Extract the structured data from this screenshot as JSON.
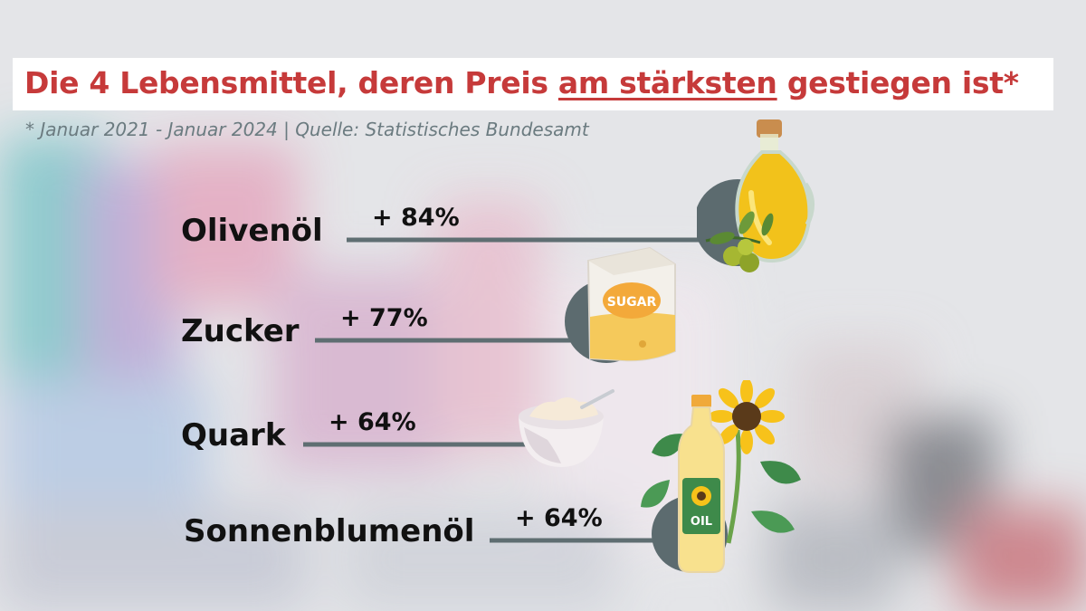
{
  "title": {
    "part1": "Die 4 Lebensmittel, deren Preis ",
    "highlight": "am stärksten",
    "part2": " gestiegen ist*"
  },
  "subtitle": "* Januar 2021 - Januar 2024 | Quelle: Statistisches Bundesamt",
  "icons": [
    "olive-oil-bottle-icon",
    "sugar-bag-icon",
    "quark-bowl-icon",
    "sunflower-oil-bottle-icon"
  ],
  "colors": {
    "title": "#c63a3a",
    "bar": "#5f6e72",
    "circle": "#5c6b6f"
  },
  "chart_data": {
    "type": "bar",
    "orientation": "horizontal",
    "unit": "%",
    "categories": [
      "Olivenöl",
      "Zucker",
      "Quark",
      "Sonnenblumenöl"
    ],
    "values": [
      84,
      77,
      64,
      64
    ],
    "value_labels": [
      "+ 84%",
      "+ 77%",
      "+ 64%",
      "+ 64%"
    ]
  }
}
